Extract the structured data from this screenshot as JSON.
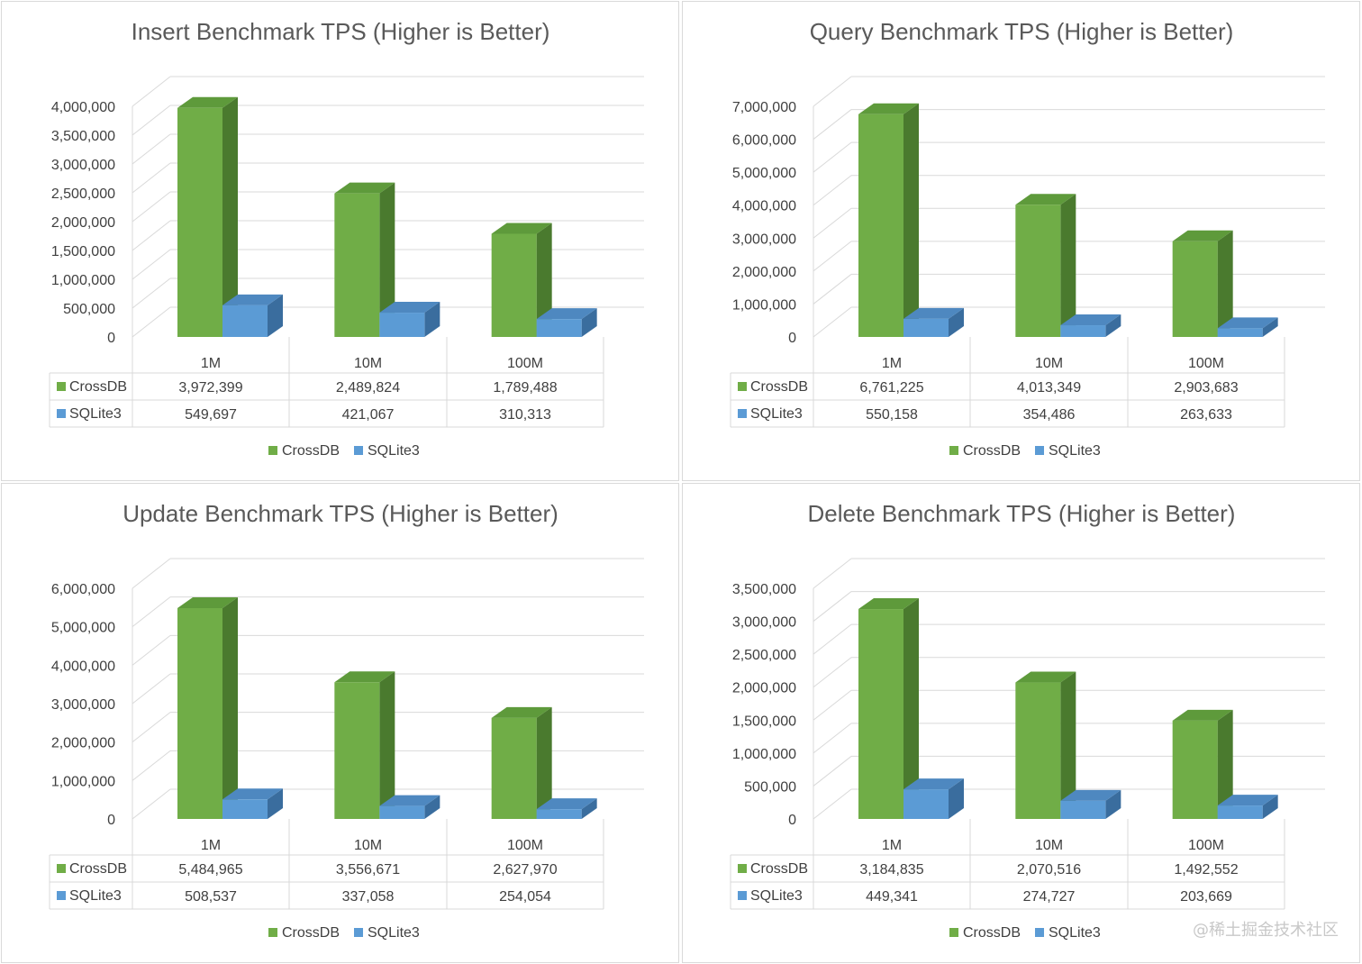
{
  "colors": {
    "crossdb": "#70ad47",
    "crossdb_top": "#5e9a3b",
    "crossdb_side": "#4a7a2e",
    "sqlite": "#5b9bd5",
    "sqlite_top": "#4e88c0",
    "sqlite_side": "#3a6d9e",
    "grid": "#d9d9d9",
    "text": "#404040"
  },
  "legend": {
    "crossdb_label": "CrossDB",
    "sqlite_label": "SQLite3"
  },
  "chart_data": [
    {
      "type": "bar",
      "title": "Insert Benchmark TPS (Higher is Better)",
      "categories": [
        "1M",
        "10M",
        "100M"
      ],
      "series": [
        {
          "name": "CrossDB",
          "values": [
            3972399,
            2489824,
            1789488
          ],
          "labels": [
            "3,972,399",
            "2,489,824",
            "1,789,488"
          ]
        },
        {
          "name": "SQLite3",
          "values": [
            549697,
            421067,
            310313
          ],
          "labels": [
            "549,697",
            "421,067",
            "310,313"
          ]
        }
      ],
      "ylim": [
        0,
        4000000
      ],
      "yticks": [
        "0",
        "500,000",
        "1,000,000",
        "1,500,000",
        "2,000,000",
        "2,500,000",
        "3,000,000",
        "3,500,000",
        "4,000,000"
      ],
      "xlabel": "",
      "ylabel": ""
    },
    {
      "type": "bar",
      "title": "Query Benchmark TPS (Higher is Better)",
      "categories": [
        "1M",
        "10M",
        "100M"
      ],
      "series": [
        {
          "name": "CrossDB",
          "values": [
            6761225,
            4013349,
            2903683
          ],
          "labels": [
            "6,761,225",
            "4,013,349",
            "2,903,683"
          ]
        },
        {
          "name": "SQLite3",
          "values": [
            550158,
            354486,
            263633
          ],
          "labels": [
            "550,158",
            "354,486",
            "263,633"
          ]
        }
      ],
      "ylim": [
        0,
        7000000
      ],
      "yticks": [
        "0",
        "1,000,000",
        "2,000,000",
        "3,000,000",
        "4,000,000",
        "5,000,000",
        "6,000,000",
        "7,000,000"
      ],
      "xlabel": "",
      "ylabel": ""
    },
    {
      "type": "bar",
      "title": "Update Benchmark TPS (Higher is Better)",
      "categories": [
        "1M",
        "10M",
        "100M"
      ],
      "series": [
        {
          "name": "CrossDB",
          "values": [
            5484965,
            3556671,
            2627970
          ],
          "labels": [
            "5,484,965",
            "3,556,671",
            "2,627,970"
          ]
        },
        {
          "name": "SQLite3",
          "values": [
            508537,
            337058,
            254054
          ],
          "labels": [
            "508,537",
            "337,058",
            "254,054"
          ]
        }
      ],
      "ylim": [
        0,
        6000000
      ],
      "yticks": [
        "0",
        "1,000,000",
        "2,000,000",
        "3,000,000",
        "4,000,000",
        "5,000,000",
        "6,000,000"
      ],
      "xlabel": "",
      "ylabel": ""
    },
    {
      "type": "bar",
      "title": "Delete Benchmark TPS (Higher is Better)",
      "categories": [
        "1M",
        "10M",
        "100M"
      ],
      "series": [
        {
          "name": "CrossDB",
          "values": [
            3184835,
            2070516,
            1492552
          ],
          "labels": [
            "3,184,835",
            "2,070,516",
            "1,492,552"
          ]
        },
        {
          "name": "SQLite3",
          "values": [
            449341,
            274727,
            203669
          ],
          "labels": [
            "449,341",
            "274,727",
            "203,669"
          ]
        }
      ],
      "ylim": [
        0,
        3500000
      ],
      "yticks": [
        "0",
        "500,000",
        "1,000,000",
        "1,500,000",
        "2,000,000",
        "2,500,000",
        "3,000,000",
        "3,500,000"
      ],
      "xlabel": "",
      "ylabel": ""
    }
  ],
  "watermark": "@稀土掘金技术社区"
}
